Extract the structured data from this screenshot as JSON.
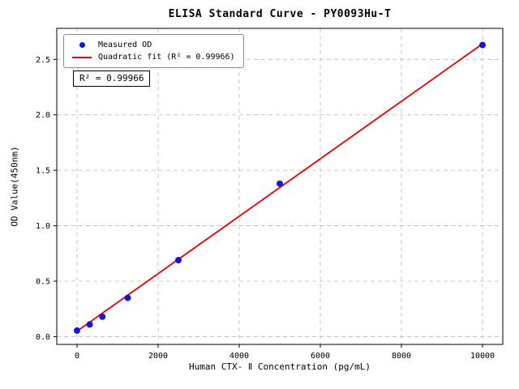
{
  "window": {
    "title": "ELISA Standard Curve - PY0093Hu-T"
  },
  "chart_data": {
    "type": "scatter",
    "title": "ELISA Standard Curve - PY0093Hu-T",
    "xlabel": "Human CTX- Ⅱ Concentration (pg/mL)",
    "ylabel": "OD Value(450nm)",
    "xlim": [
      -500,
      10500
    ],
    "ylim": [
      -0.07,
      2.78
    ],
    "xticks": [
      0,
      2000,
      4000,
      6000,
      8000,
      10000
    ],
    "yticks": [
      0,
      0.5,
      1,
      1.5,
      2,
      2.5
    ],
    "grid": true,
    "legend_position": "upper-left",
    "annotation": "R² = 0.99966",
    "series": [
      {
        "name": "Measured OD",
        "type": "scatter",
        "color": "#1414dc",
        "x": [
          0,
          312,
          625,
          1250,
          2500,
          5000,
          10000
        ],
        "y": [
          0.055,
          0.11,
          0.18,
          0.35,
          0.69,
          1.38,
          2.63
        ]
      },
      {
        "name": "Quadratic fit (R² = 0.99966)",
        "type": "line",
        "color": "#e80000",
        "x": [
          0,
          10000
        ],
        "y": [
          0.05,
          2.64
        ]
      }
    ],
    "colors": {
      "grid": "#b8b8b8",
      "axis": "#000000",
      "background": "#ffffff"
    }
  }
}
